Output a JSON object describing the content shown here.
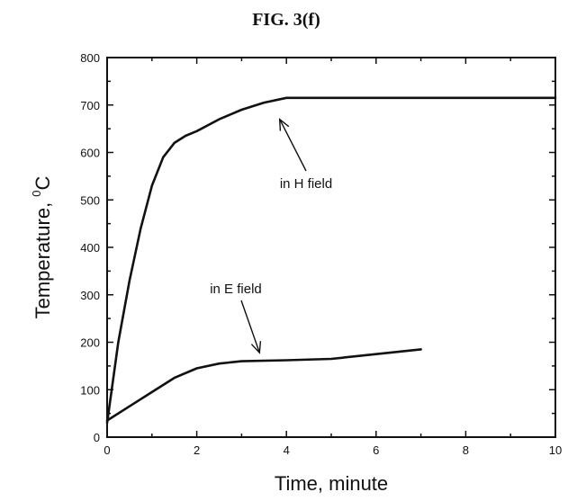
{
  "figure": {
    "title": "FIG. 3(f)"
  },
  "chart_data": {
    "type": "line",
    "title": "FIG. 3(f)",
    "xlabel": "Time, minute",
    "ylabel": "Temperature, ",
    "ylabel_superscript": "0",
    "ylabel_unit": "C",
    "xlim": [
      0,
      10
    ],
    "ylim": [
      0,
      800
    ],
    "x_ticks": [
      0,
      2,
      4,
      6,
      8,
      10
    ],
    "y_ticks": [
      0,
      100,
      200,
      300,
      400,
      500,
      600,
      700,
      800
    ],
    "grid": false,
    "line_color": "#111111",
    "series": [
      {
        "annotation": "in H field",
        "x": [
          0,
          0.25,
          0.5,
          0.75,
          1.0,
          1.25,
          1.5,
          1.75,
          2.0,
          2.5,
          3.0,
          3.5,
          4.0,
          4.5,
          5.0,
          6.0,
          7.0,
          8.0,
          9.0,
          10.0
        ],
        "y": [
          30,
          200,
          330,
          440,
          530,
          590,
          620,
          635,
          645,
          670,
          690,
          705,
          715,
          715,
          715,
          715,
          715,
          715,
          715,
          715
        ]
      },
      {
        "annotation": "in E field",
        "x": [
          0,
          0.5,
          1.0,
          1.5,
          2.0,
          2.5,
          3.0,
          4.0,
          5.0,
          6.0,
          7.0
        ],
        "y": [
          35,
          65,
          95,
          125,
          145,
          155,
          160,
          162,
          165,
          175,
          185
        ]
      }
    ],
    "annotations": [
      {
        "text": "in H field",
        "series_index": 0,
        "points_to": {
          "x": 3.85,
          "y": 670
        }
      },
      {
        "text": "in E field",
        "series_index": 1,
        "points_to": {
          "x": 3.4,
          "y": 178
        }
      }
    ]
  }
}
